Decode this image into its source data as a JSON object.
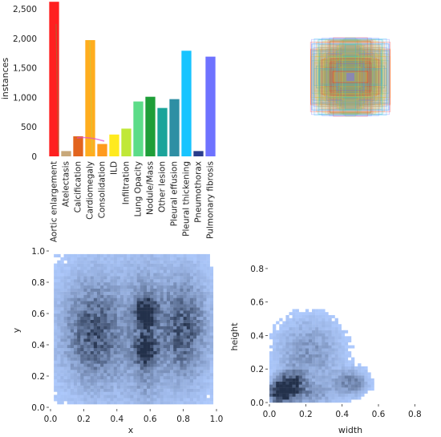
{
  "chart_data": [
    {
      "type": "bar",
      "ylabel": "instances",
      "xlabel": "",
      "ylim": [
        0,
        2650
      ],
      "yticks": [
        0,
        500,
        1000,
        1500,
        2000,
        2500
      ],
      "ytick_labels": [
        "0",
        "500",
        "1,000",
        "1,500",
        "2,000",
        "2,500"
      ],
      "categories": [
        "Aortic enlargement",
        "Atelectasis",
        "Calcification",
        "Cardiomegaly",
        "Consolidation",
        "ILD",
        "Infiltration",
        "Lung Opacity",
        "Nodule/Mass",
        "Other lesion",
        "Pleural effusion",
        "Pleural thickening",
        "Pneumothorax",
        "Pulmonary fibrosis"
      ],
      "values": [
        2620,
        90,
        340,
        1970,
        210,
        370,
        470,
        930,
        1010,
        820,
        970,
        1790,
        90,
        1690
      ],
      "colors": [
        "#ff2020",
        "#c8a87a",
        "#e2641e",
        "#ffad1e",
        "#ff9a1e",
        "#ffea1e",
        "#c0e838",
        "#5cdc88",
        "#1e9e38",
        "#1aa49a",
        "#2e8fa4",
        "#18c4ff",
        "#283c8c",
        "#6e72ff"
      ]
    },
    {
      "type": "overlaid-boxes",
      "description_colors": [
        "#ffad1e",
        "#ffea1e",
        "#18c4ff",
        "#5cdc88",
        "#ff2020",
        "#6e72ff"
      ]
    },
    {
      "type": "heatmap",
      "xlabel": "x",
      "ylabel": "y",
      "xlim": [
        0,
        1
      ],
      "ylim": [
        0,
        1
      ],
      "xticks": [
        0.0,
        0.2,
        0.4,
        0.6,
        0.8,
        1.0
      ],
      "xtick_labels": [
        "0.0",
        "0.2",
        "0.4",
        "0.6",
        "0.8",
        "1.0"
      ],
      "yticks": [
        0.0,
        0.2,
        0.4,
        0.6,
        0.8,
        1.0
      ],
      "ytick_labels": [
        "0.0",
        "0.2",
        "0.4",
        "0.6",
        "0.8",
        "1.0"
      ],
      "color": "#1f5fb4"
    },
    {
      "type": "heatmap",
      "xlabel": "width",
      "ylabel": "height",
      "xlim": [
        0,
        0.9
      ],
      "ylim": [
        0,
        0.9
      ],
      "xticks": [
        0.0,
        0.2,
        0.4,
        0.6,
        0.8
      ],
      "xtick_labels": [
        "0.0",
        "0.2",
        "0.4",
        "0.6",
        "0.8"
      ],
      "yticks": [
        0.0,
        0.2,
        0.4,
        0.6,
        0.8
      ],
      "ytick_labels": [
        "0.0",
        "0.2",
        "0.4",
        "0.6",
        "0.8"
      ],
      "color": "#1f5fb4"
    }
  ]
}
